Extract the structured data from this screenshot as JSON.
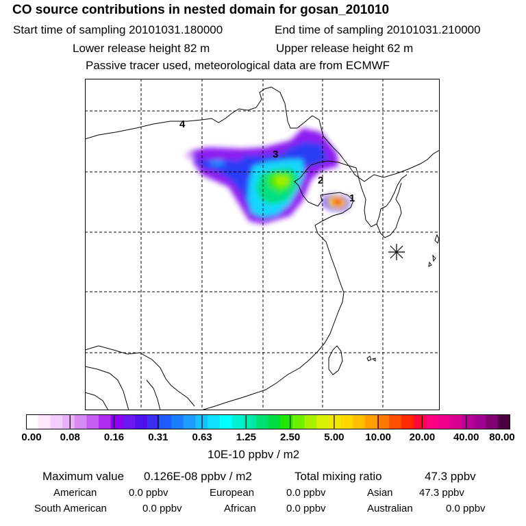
{
  "header": {
    "title": "CO  source contributions in nested domain for gosan_201010",
    "start_time": "Start time of sampling 20101031.180000",
    "end_time": "End time of sampling 20101031.210000",
    "lower_release": "Lower release height   82 m",
    "upper_release": "Upper release height   62 m",
    "tracer_note": "Passive tracer used, meteorological data are from ECMWF"
  },
  "map": {
    "labels": [
      "1",
      "2",
      "3",
      "4"
    ],
    "colors": {
      "border": "#000000",
      "grid": "#000000"
    }
  },
  "colorbar": {
    "colors": [
      "#ffffff",
      "#fbe8ff",
      "#f3cdfb",
      "#e8b1f8",
      "#d68af4",
      "#c45cf2",
      "#b02cf0",
      "#9000f0",
      "#6d18f0",
      "#4f10ee",
      "#3b2cf0",
      "#1e5cff",
      "#1a7cff",
      "#1f9cff",
      "#17c0ff",
      "#10e0ff",
      "#00ffff",
      "#00f0d0",
      "#00e8a8",
      "#00e070",
      "#00dd40",
      "#1fe800",
      "#6ef000",
      "#a8f000",
      "#d6f000",
      "#f2e800",
      "#ffd800",
      "#ffbe00",
      "#ff9f00",
      "#ff7800",
      "#ff5000",
      "#ff2800",
      "#ff0a38",
      "#ff0080",
      "#f0008a",
      "#d80090",
      "#b80098",
      "#a00090",
      "#7c0070",
      "#4a0040"
    ],
    "tick_labels": [
      "0.00",
      "0.08",
      "0.16",
      "0.31",
      "0.63",
      "1.25",
      "2.50",
      "5.00",
      "10.00",
      "20.00",
      "40.00",
      "80.00"
    ],
    "units": "10E-10 ppbv / m2"
  },
  "summary": {
    "max_label": "Maximum value",
    "max_value": "0.126E-08 ppbv / m2",
    "total_label": "Total mixing ratio",
    "total_value": "47.3 ppbv",
    "regions": [
      {
        "name": "American",
        "value": "0.0 ppbv"
      },
      {
        "name": "European",
        "value": "0.0 ppbv"
      },
      {
        "name": "Asian",
        "value": "47.3 ppbv"
      },
      {
        "name": "South American",
        "value": "0.0 ppbv"
      },
      {
        "name": "African",
        "value": "0.0 ppbv"
      },
      {
        "name": "Australian",
        "value": "0.0 ppbv"
      }
    ]
  }
}
